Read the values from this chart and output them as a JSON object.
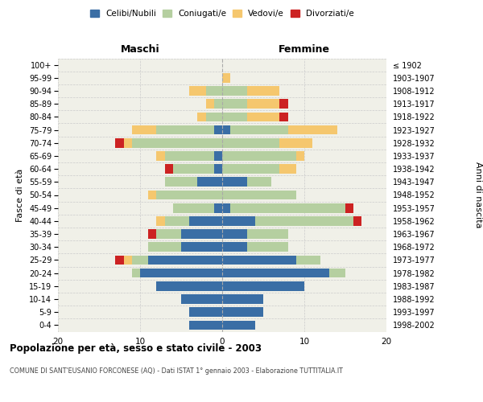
{
  "age_groups": [
    "0-4",
    "5-9",
    "10-14",
    "15-19",
    "20-24",
    "25-29",
    "30-34",
    "35-39",
    "40-44",
    "45-49",
    "50-54",
    "55-59",
    "60-64",
    "65-69",
    "70-74",
    "75-79",
    "80-84",
    "85-89",
    "90-94",
    "95-99",
    "100+"
  ],
  "birth_years": [
    "1998-2002",
    "1993-1997",
    "1988-1992",
    "1983-1987",
    "1978-1982",
    "1973-1977",
    "1968-1972",
    "1963-1967",
    "1958-1962",
    "1953-1957",
    "1948-1952",
    "1943-1947",
    "1938-1942",
    "1933-1937",
    "1928-1932",
    "1923-1927",
    "1918-1922",
    "1913-1917",
    "1908-1912",
    "1903-1907",
    "≤ 1902"
  ],
  "maschi": {
    "celibi": [
      4,
      4,
      5,
      8,
      10,
      9,
      5,
      5,
      4,
      1,
      0,
      3,
      1,
      1,
      0,
      1,
      0,
      0,
      0,
      0,
      0
    ],
    "coniugati": [
      0,
      0,
      0,
      0,
      1,
      2,
      4,
      3,
      3,
      5,
      8,
      4,
      5,
      6,
      11,
      7,
      2,
      1,
      2,
      0,
      0
    ],
    "vedovi": [
      0,
      0,
      0,
      0,
      0,
      1,
      0,
      0,
      1,
      0,
      1,
      0,
      0,
      1,
      1,
      3,
      1,
      1,
      2,
      0,
      0
    ],
    "divorziati": [
      0,
      0,
      0,
      0,
      0,
      1,
      0,
      1,
      0,
      0,
      0,
      0,
      1,
      0,
      1,
      0,
      0,
      0,
      0,
      0,
      0
    ]
  },
  "femmine": {
    "nubili": [
      4,
      5,
      5,
      10,
      13,
      9,
      3,
      3,
      4,
      1,
      0,
      3,
      0,
      0,
      0,
      1,
      0,
      0,
      0,
      0,
      0
    ],
    "coniugate": [
      0,
      0,
      0,
      0,
      2,
      3,
      5,
      5,
      12,
      14,
      9,
      3,
      7,
      9,
      7,
      7,
      3,
      3,
      3,
      0,
      0
    ],
    "vedove": [
      0,
      0,
      0,
      0,
      0,
      0,
      0,
      0,
      0,
      0,
      0,
      0,
      2,
      1,
      4,
      6,
      4,
      4,
      4,
      1,
      0
    ],
    "divorziate": [
      0,
      0,
      0,
      0,
      0,
      0,
      0,
      0,
      1,
      1,
      0,
      0,
      0,
      0,
      0,
      0,
      1,
      1,
      0,
      0,
      0
    ]
  },
  "colors": {
    "celibi_nubili": "#3a6ea5",
    "coniugati": "#b5cfa0",
    "vedovi": "#f5c76e",
    "divorziati": "#cc2222"
  },
  "xlim": 20,
  "title": "Popolazione per età, sesso e stato civile - 2003",
  "subtitle": "COMUNE DI SANT'EUSANIO FORCONESE (AQ) - Dati ISTAT 1° gennaio 2003 - Elaborazione TUTTITALIA.IT",
  "ylabel_left": "Fasce di età",
  "ylabel_right": "Anni di nascita",
  "xlabel_maschi": "Maschi",
  "xlabel_femmine": "Femmine",
  "legend_labels": [
    "Celibi/Nubili",
    "Coniugati/e",
    "Vedovi/e",
    "Divorziati/e"
  ],
  "bg_color": "#f0f0e8",
  "grid_color": "#cccccc"
}
